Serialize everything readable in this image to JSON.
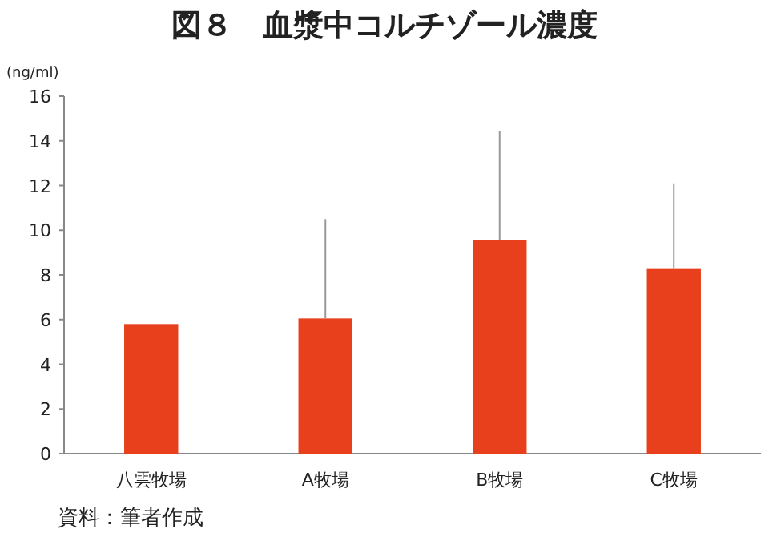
{
  "chart_data": {
    "type": "bar",
    "title": "図８　血漿中コルチゾール濃度",
    "ylabel": "(ng/ml)",
    "categories": [
      "八雲牧場",
      "A牧場",
      "B牧場",
      "C牧場"
    ],
    "values": [
      5.8,
      6.05,
      9.55,
      8.3
    ],
    "errors": [
      null,
      [
        6.05,
        10.5
      ],
      [
        9.55,
        14.45
      ],
      [
        8.3,
        12.1
      ]
    ],
    "color": "#e8401c",
    "ylim": [
      0,
      16
    ],
    "yticks": [
      0,
      2,
      4,
      6,
      8,
      10,
      12,
      14,
      16
    ],
    "grid": false,
    "annotations": [
      "資料：筆者作成"
    ]
  }
}
